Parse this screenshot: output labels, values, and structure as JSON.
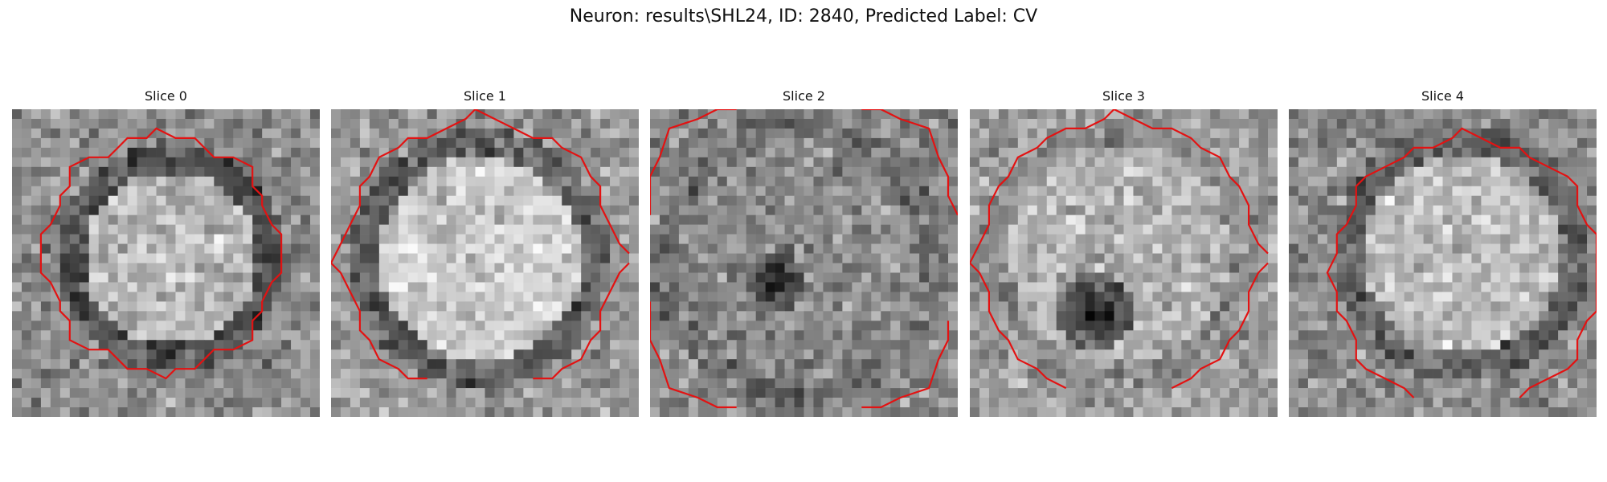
{
  "figure": {
    "title": "Neuron: results\\SHL24, ID: 2840, Predicted Label: CV",
    "contour_color": "#e31212",
    "colormap": "gray"
  },
  "slices": [
    {
      "label": "Slice 0"
    },
    {
      "label": "Slice 1"
    },
    {
      "label": "Slice 2"
    },
    {
      "label": "Slice 3"
    },
    {
      "label": "Slice 4"
    }
  ]
}
